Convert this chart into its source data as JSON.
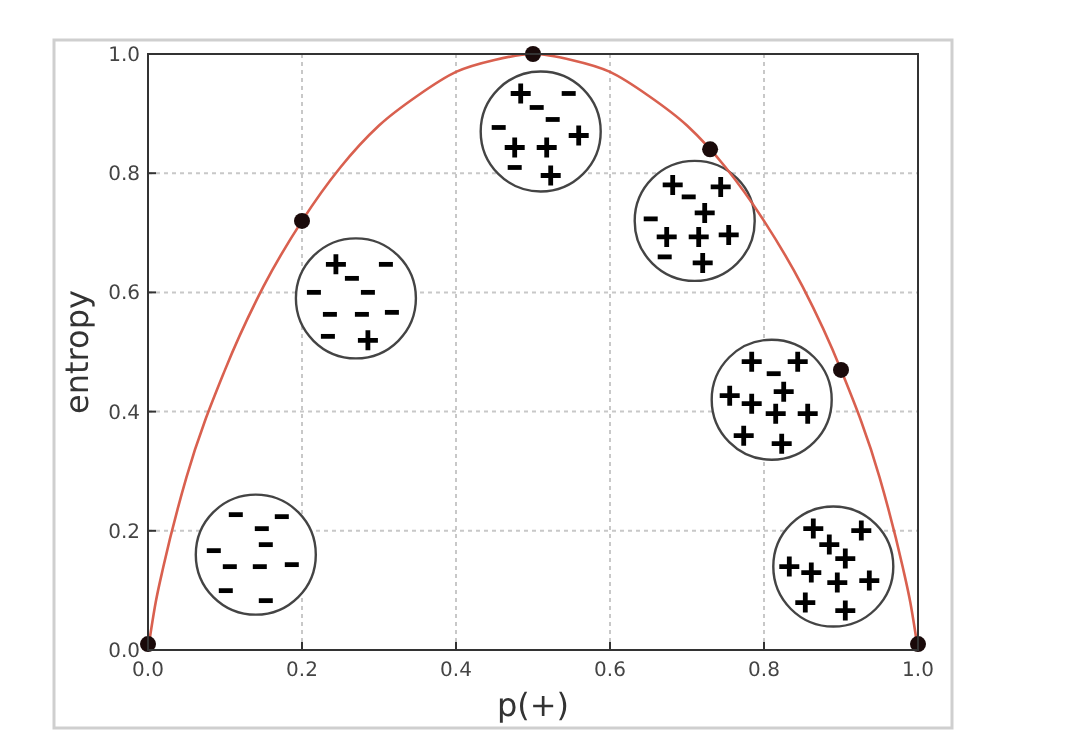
{
  "chart_data": {
    "type": "line",
    "xlabel": "p(+)",
    "ylabel": "entropy",
    "xlim": [
      0,
      1
    ],
    "ylim": [
      0,
      1
    ],
    "xticks": [
      {
        "value": 0,
        "label": "0.0"
      },
      0.2,
      0.4,
      0.6,
      0.8,
      {
        "value": 1,
        "label": "1.0"
      }
    ],
    "yticks": [
      {
        "value": 0,
        "label": "0.0"
      },
      0.2,
      0.4,
      0.6,
      0.8,
      {
        "value": 1,
        "label": "1.0"
      }
    ],
    "grid": true,
    "series": [
      {
        "color": "#d9604f",
        "x": [
          0,
          0.01,
          0.02,
          0.05,
          0.1,
          0.15,
          0.2,
          0.25,
          0.3,
          0.35,
          0.4,
          0.45,
          0.5,
          0.55,
          0.6,
          0.65,
          0.7,
          0.75,
          0.8,
          0.85,
          0.9,
          0.95,
          0.98,
          0.99,
          1
        ],
        "values": [
          0,
          0.08,
          0.14,
          0.29,
          0.47,
          0.61,
          0.72,
          0.81,
          0.88,
          0.93,
          0.97,
          0.99,
          1.0,
          0.99,
          0.97,
          0.93,
          0.88,
          0.81,
          0.72,
          0.61,
          0.47,
          0.29,
          0.14,
          0.08,
          0
        ]
      },
      {
        "type": "scatter",
        "color": "#1a0a0a",
        "marker": "circle",
        "x": [
          0,
          0.2,
          0.5,
          0.73,
          0.9,
          1.0
        ],
        "values": [
          0.01,
          0.72,
          1.0,
          0.84,
          0.47,
          0.01
        ]
      }
    ]
  }
}
